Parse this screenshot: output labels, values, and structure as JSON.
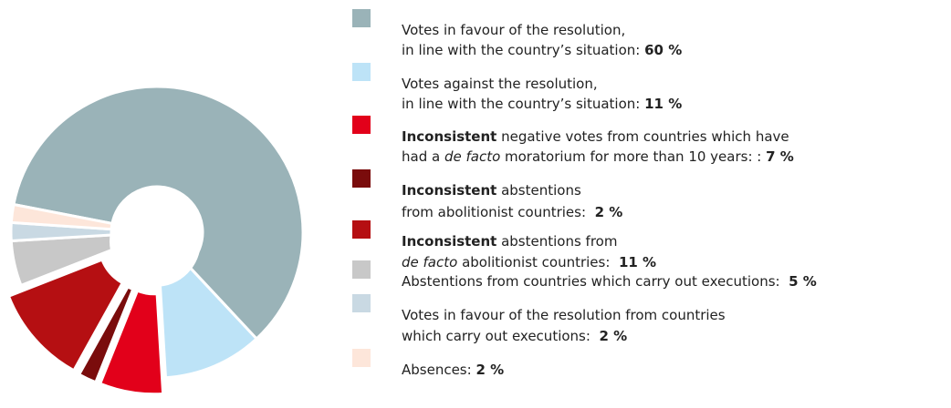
{
  "chart_data": {
    "type": "pie",
    "donut": true,
    "categories": [
      [
        [
          "Votes in favour of the resolution,"
        ],
        [
          "in line with the country’s situation: "
        ]
      ],
      [
        [
          "Votes against the resolution,"
        ],
        [
          "in line with the country’s situation: "
        ]
      ],
      [
        [
          {
            "text": "Inconsistent",
            "style": "bold"
          },
          " negative votes from countries which have"
        ],
        [
          "had a ",
          {
            "text": "de facto",
            "style": "italic"
          },
          " moratorium for more than 10 years: : "
        ]
      ],
      [
        [
          {
            "text": "Inconsistent",
            "style": "bold"
          },
          " abstentions"
        ],
        [
          "from abolitionist countries:  "
        ]
      ],
      [
        [
          {
            "text": "Inconsistent",
            "style": "bold"
          },
          " abstentions from"
        ],
        [
          {
            "text": "de facto",
            "style": "italic"
          },
          " abolitionist countries:  "
        ]
      ],
      [
        [
          "Abstentions from countries which carry out executions:  "
        ]
      ],
      [
        [
          "Votes in favour of the resolution from countries"
        ],
        [
          "which carry out executions:  "
        ]
      ],
      [
        [
          "Absences: "
        ]
      ]
    ],
    "values": [
      60,
      11,
      7,
      2,
      11,
      5,
      2,
      2
    ],
    "value_labels": [
      "60 %",
      "11 %",
      "7 %",
      "2 %",
      "11 %",
      "5 %",
      "2 %",
      "2 %"
    ],
    "colors": [
      "#9ab3b8",
      "#bde3f7",
      "#e2001a",
      "#7a0c0c",
      "#b50f12",
      "#c8c8c8",
      "#c9d9e3",
      "#fde6da"
    ]
  }
}
